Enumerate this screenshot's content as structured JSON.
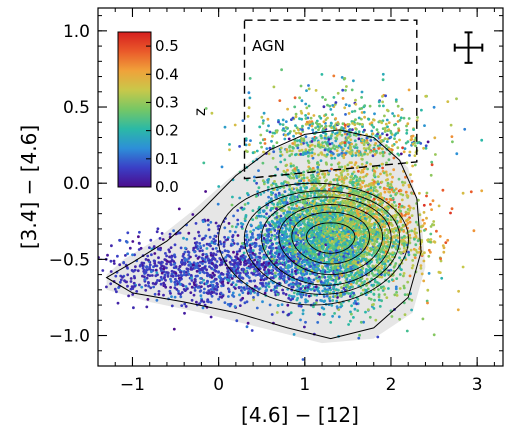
{
  "chart_data": {
    "type": "scatter",
    "xlabel": "[4.6] − [12]",
    "ylabel": "[3.4] − [4.6]",
    "xlim": [
      -1.4,
      3.3
    ],
    "ylim": [
      -1.2,
      1.15
    ],
    "x_ticks": [
      -1,
      0,
      1,
      2,
      3
    ],
    "x_tick_labels": [
      "−1",
      "0",
      "1",
      "2",
      "3"
    ],
    "y_ticks": [
      1.0,
      0.5,
      0.0,
      -0.5,
      -1.0
    ],
    "y_tick_labels": [
      "1.0",
      "0.5",
      "0.0",
      "−0.5",
      "−1.0"
    ],
    "colorbar": {
      "label": "z",
      "range": [
        0.0,
        0.55
      ],
      "ticks": [
        0.5,
        0.4,
        0.3,
        0.2,
        0.1,
        0.0
      ],
      "tick_labels": [
        "0.5",
        "0.4",
        "0.3",
        "0.2",
        "0.1",
        "0.0"
      ],
      "colormap": [
        "#4b0c8c",
        "#3a3fc6",
        "#2d8fd8",
        "#2bb9a6",
        "#76c765",
        "#c8c84a",
        "#f0a23a",
        "#ea5a2a",
        "#d61f1f"
      ]
    },
    "agn_region": {
      "label": "AGN",
      "vertices": [
        [
          0.3,
          1.07
        ],
        [
          2.3,
          1.07
        ],
        [
          2.3,
          0.14
        ],
        [
          0.3,
          0.03
        ],
        [
          0.3,
          1.07
        ]
      ]
    },
    "error_bar": {
      "x": 2.9,
      "y": 0.89,
      "xerr": 0.16,
      "yerr": 0.1
    },
    "density_contours": [
      {
        "center": [
          1.3,
          -0.36
        ],
        "a": 0.28,
        "b": 0.1,
        "angle": 0
      },
      {
        "center": [
          1.3,
          -0.36
        ],
        "a": 0.45,
        "b": 0.17,
        "angle": 0
      },
      {
        "center": [
          1.3,
          -0.37
        ],
        "a": 0.6,
        "b": 0.23,
        "angle": 0
      },
      {
        "center": [
          1.25,
          -0.38
        ],
        "a": 0.75,
        "b": 0.29,
        "angle": 0
      },
      {
        "center": [
          1.2,
          -0.39
        ],
        "a": 0.9,
        "b": 0.34,
        "angle": 0
      },
      {
        "center": [
          1.1,
          -0.4
        ],
        "a": 1.1,
        "b": 0.4,
        "angle": 0
      }
    ],
    "outer_contour": [
      [
        -1.3,
        -0.62
      ],
      [
        -1.0,
        -0.52
      ],
      [
        -0.6,
        -0.38
      ],
      [
        -0.2,
        -0.18
      ],
      [
        0.2,
        0.05
      ],
      [
        0.6,
        0.22
      ],
      [
        1.0,
        0.32
      ],
      [
        1.4,
        0.35
      ],
      [
        1.8,
        0.3
      ],
      [
        2.1,
        0.15
      ],
      [
        2.3,
        -0.1
      ],
      [
        2.35,
        -0.45
      ],
      [
        2.2,
        -0.75
      ],
      [
        1.8,
        -0.95
      ],
      [
        1.3,
        -1.02
      ],
      [
        0.8,
        -0.95
      ],
      [
        0.2,
        -0.85
      ],
      [
        -0.4,
        -0.78
      ],
      [
        -1.0,
        -0.72
      ],
      [
        -1.3,
        -0.62
      ]
    ],
    "shaded_region": [
      [
        -1.3,
        -0.6
      ],
      [
        -1.1,
        -0.5
      ],
      [
        -0.7,
        -0.36
      ],
      [
        -0.3,
        -0.18
      ],
      [
        0.1,
        0.02
      ],
      [
        0.5,
        0.2
      ],
      [
        1.0,
        0.3
      ],
      [
        1.5,
        0.33
      ],
      [
        1.9,
        0.28
      ],
      [
        2.2,
        0.1
      ],
      [
        2.35,
        -0.2
      ],
      [
        2.4,
        -0.55
      ],
      [
        2.25,
        -0.85
      ],
      [
        1.8,
        -1.02
      ],
      [
        1.2,
        -1.05
      ],
      [
        0.5,
        -0.95
      ],
      [
        -0.2,
        -0.85
      ],
      [
        -0.8,
        -0.78
      ],
      [
        -1.3,
        -0.7
      ]
    ],
    "point_count": 6500
  }
}
